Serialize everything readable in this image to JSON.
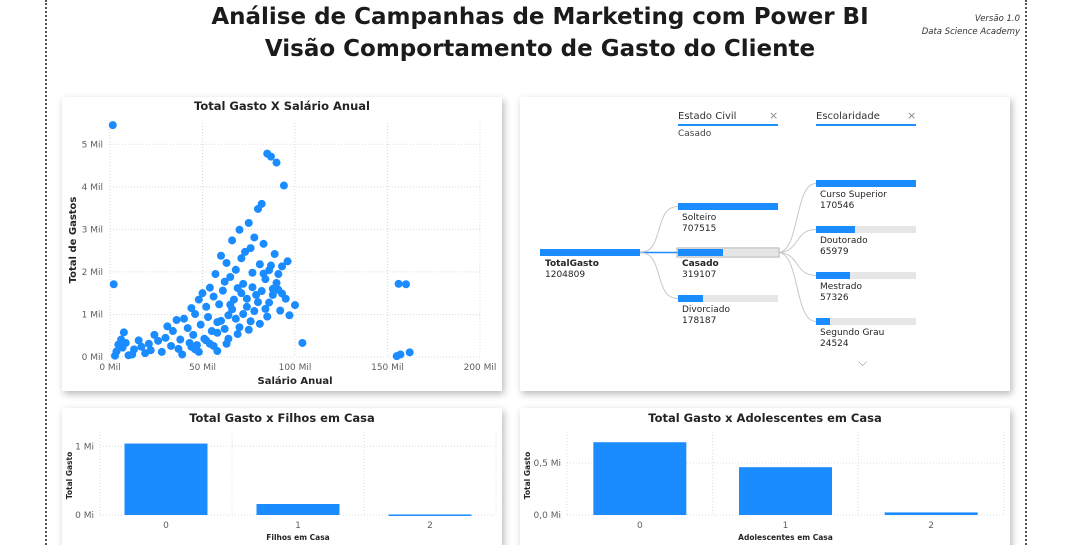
{
  "header": {
    "title_line1": "Análise de Campanhas de Marketing com Power BI",
    "title_line2": "Visão Comportamento de Gasto do Cliente",
    "version": "Versão 1.0",
    "author": "Data Science Academy"
  },
  "scatter": {
    "title": "Total Gasto X Salário Anual",
    "chart_data": {
      "type": "scatter",
      "title": "Total Gasto X Salário Anual",
      "xlabel": "Salário Anual",
      "ylabel": "Total de Gastos",
      "xlim": [
        0,
        200000
      ],
      "ylim": [
        0,
        5500
      ],
      "x_ticks": [
        "0 Mil",
        "50 Mil",
        "100 Mil",
        "150 Mil",
        "200 Mil"
      ],
      "y_ticks": [
        "0 Mil",
        "1 Mil",
        "2 Mil",
        "3 Mil",
        "4 Mil",
        "5 Mil"
      ],
      "color": "#1a8cff",
      "points": [
        [
          1500,
          5450
        ],
        [
          2000,
          1710
        ],
        [
          2700,
          30
        ],
        [
          4500,
          290
        ],
        [
          3500,
          130
        ],
        [
          6000,
          410
        ],
        [
          7500,
          580
        ],
        [
          6800,
          220
        ],
        [
          8500,
          330
        ],
        [
          10000,
          40
        ],
        [
          13000,
          180
        ],
        [
          12000,
          60
        ],
        [
          15500,
          390
        ],
        [
          17000,
          240
        ],
        [
          19000,
          90
        ],
        [
          21000,
          310
        ],
        [
          24000,
          520
        ],
        [
          22000,
          160
        ],
        [
          26000,
          380
        ],
        [
          28000,
          120
        ],
        [
          30000,
          450
        ],
        [
          31000,
          720
        ],
        [
          33000,
          260
        ],
        [
          34000,
          610
        ],
        [
          36000,
          870
        ],
        [
          38000,
          410
        ],
        [
          37000,
          190
        ],
        [
          40000,
          900
        ],
        [
          42000,
          680
        ],
        [
          43000,
          330
        ],
        [
          44000,
          1150
        ],
        [
          45000,
          520
        ],
        [
          46000,
          1010
        ],
        [
          47000,
          280
        ],
        [
          48000,
          1350
        ],
        [
          49000,
          760
        ],
        [
          50000,
          1500
        ],
        [
          51000,
          430
        ],
        [
          52000,
          1180
        ],
        [
          53000,
          940
        ],
        [
          54000,
          1630
        ],
        [
          55000,
          610
        ],
        [
          56000,
          1420
        ],
        [
          57000,
          1950
        ],
        [
          58000,
          820
        ],
        [
          59000,
          1240
        ],
        [
          60000,
          2380
        ],
        [
          61000,
          1560
        ],
        [
          62000,
          1770
        ],
        [
          63000,
          2210
        ],
        [
          64000,
          980
        ],
        [
          65000,
          1880
        ],
        [
          66000,
          2740
        ],
        [
          67000,
          1350
        ],
        [
          68000,
          2050
        ],
        [
          69000,
          1620
        ],
        [
          70000,
          2990
        ],
        [
          71000,
          2320
        ],
        [
          72000,
          1720
        ],
        [
          73000,
          2470
        ],
        [
          74000,
          1180
        ],
        [
          75000,
          3150
        ],
        [
          76000,
          2560
        ],
        [
          77000,
          1980
        ],
        [
          78000,
          2810
        ],
        [
          79000,
          1460
        ],
        [
          80000,
          3480
        ],
        [
          81000,
          2180
        ],
        [
          82000,
          3600
        ],
        [
          83000,
          2660
        ],
        [
          84000,
          1830
        ],
        [
          85000,
          4780
        ],
        [
          86000,
          2040
        ],
        [
          87000,
          4710
        ],
        [
          88000,
          1600
        ],
        [
          89000,
          2420
        ],
        [
          90000,
          4570
        ],
        [
          91000,
          1950
        ],
        [
          92000,
          1090
        ],
        [
          93000,
          2130
        ],
        [
          94000,
          4030
        ],
        [
          95000,
          1370
        ],
        [
          96000,
          2250
        ],
        [
          97000,
          980
        ],
        [
          100000,
          1220
        ],
        [
          104000,
          330
        ],
        [
          156000,
          1720
        ],
        [
          160000,
          1710
        ],
        [
          155000,
          20
        ],
        [
          157000,
          60
        ],
        [
          162000,
          110
        ],
        [
          44000,
          240
        ],
        [
          52000,
          390
        ],
        [
          58000,
          570
        ],
        [
          64000,
          430
        ],
        [
          68000,
          900
        ],
        [
          72000,
          1010
        ],
        [
          76000,
          840
        ],
        [
          80000,
          1290
        ],
        [
          84000,
          1130
        ],
        [
          88000,
          1460
        ],
        [
          56000,
          260
        ],
        [
          62000,
          660
        ],
        [
          66000,
          1120
        ],
        [
          70000,
          700
        ],
        [
          74000,
          1370
        ],
        [
          78000,
          1080
        ],
        [
          82000,
          1550
        ],
        [
          86000,
          1280
        ],
        [
          90000,
          1740
        ],
        [
          48000,
          120
        ],
        [
          54000,
          310
        ],
        [
          60000,
          850
        ],
        [
          65000,
          1230
        ],
        [
          71000,
          1500
        ],
        [
          77000,
          1640
        ],
        [
          83000,
          1960
        ],
        [
          87000,
          2150
        ],
        [
          91000,
          1580
        ],
        [
          39000,
          60
        ],
        [
          46000,
          180
        ],
        [
          58000,
          140
        ],
        [
          63000,
          310
        ],
        [
          69000,
          540
        ],
        [
          75000,
          640
        ],
        [
          81000,
          780
        ],
        [
          85000,
          950
        ],
        [
          93000,
          1490
        ]
      ]
    }
  },
  "decomp_tree": {
    "slicer1": {
      "label": "Estado Civil",
      "value": "Casado"
    },
    "slicer2": {
      "label": "Escolaridade"
    },
    "clear_symbol": "×",
    "root": {
      "label": "TotalGasto",
      "value": "1204809"
    },
    "level1": [
      {
        "label": "Solteiro",
        "value": "707515",
        "fraction": 1.0,
        "selected": false
      },
      {
        "label": "Casado",
        "value": "319107",
        "fraction": 0.45,
        "selected": true
      },
      {
        "label": "Divorciado",
        "value": "178187",
        "fraction": 0.25,
        "selected": false
      }
    ],
    "level2": [
      {
        "label": "Curso Superior",
        "value": "170546",
        "fraction": 1.0
      },
      {
        "label": "Doutorado",
        "value": "65979",
        "fraction": 0.39
      },
      {
        "label": "Mestrado",
        "value": "57326",
        "fraction": 0.34
      },
      {
        "label": "Segundo Grau",
        "value": "24524",
        "fraction": 0.14
      }
    ],
    "chevron": "⌵"
  },
  "bar_filhos": {
    "title": "Total Gasto x Filhos em Casa",
    "chart_data": {
      "type": "bar",
      "title": "Total Gasto x Filhos em Casa",
      "xlabel": "Filhos em Casa",
      "ylabel": "Total Gasto",
      "categories": [
        "0",
        "1",
        "2"
      ],
      "values": [
        1040000,
        160000,
        8000
      ],
      "ylim": [
        0,
        1150000
      ],
      "y_ticks": [
        {
          "label": "0 Mi",
          "value": 0
        },
        {
          "label": "1 Mi",
          "value": 1000000
        }
      ],
      "color": "#1a8cff"
    }
  },
  "bar_adolescentes": {
    "title": "Total Gasto x Adolescentes em Casa",
    "chart_data": {
      "type": "bar",
      "title": "Total Gasto x Adolescentes em Casa",
      "xlabel": "Adolescentes em Casa",
      "ylabel": "Total Gasto",
      "categories": [
        "0",
        "1",
        "2"
      ],
      "values": [
        700000,
        460000,
        25000
      ],
      "ylim": [
        0,
        760000
      ],
      "y_ticks": [
        {
          "label": "0,0 Mi",
          "value": 0
        },
        {
          "label": "0,5 Mi",
          "value": 500000
        }
      ],
      "color": "#1a8cff"
    }
  }
}
